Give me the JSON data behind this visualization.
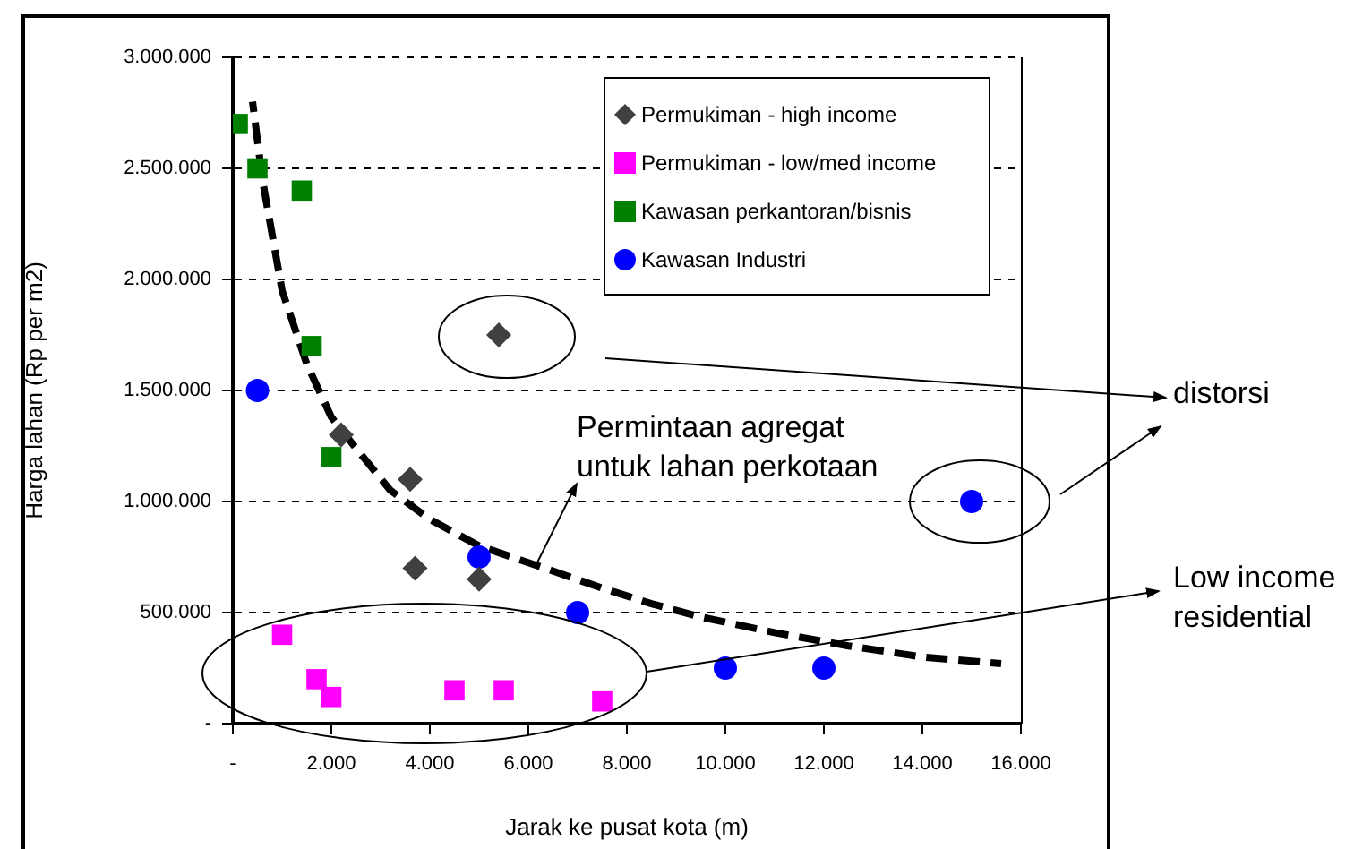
{
  "chart_data": {
    "type": "scatter",
    "xlabel": "Jarak ke pusat kota (m)",
    "ylabel": "Harga lahan (Rp per m2)",
    "xlim": [
      0,
      16000
    ],
    "ylim": [
      0,
      3000000
    ],
    "xticks": [
      {
        "value": 0,
        "label": "-"
      },
      {
        "value": 2000,
        "label": "2.000"
      },
      {
        "value": 4000,
        "label": "4.000"
      },
      {
        "value": 6000,
        "label": "6.000"
      },
      {
        "value": 8000,
        "label": "8.000"
      },
      {
        "value": 10000,
        "label": "10.000"
      },
      {
        "value": 12000,
        "label": "12.000"
      },
      {
        "value": 14000,
        "label": "14.000"
      },
      {
        "value": 16000,
        "label": "16.000"
      }
    ],
    "yticks": [
      {
        "value": 0,
        "label": "-"
      },
      {
        "value": 500000,
        "label": "500.000"
      },
      {
        "value": 1000000,
        "label": "1.000.000"
      },
      {
        "value": 1500000,
        "label": "1.500.000"
      },
      {
        "value": 2000000,
        "label": "2.000.000"
      },
      {
        "value": 2500000,
        "label": "2.500.000"
      },
      {
        "value": 3000000,
        "label": "3.000.000"
      }
    ],
    "grid": "y",
    "legend": "top right",
    "series": [
      {
        "name": "Permukiman - high income",
        "color": "#404040",
        "marker": "diamond",
        "x": [
          5400,
          2200,
          3600,
          3700,
          5000
        ],
        "values": [
          1750000,
          1300000,
          1100000,
          700000,
          650000
        ]
      },
      {
        "name": "Permukiman - low/med income",
        "color": "#ff00ff",
        "marker": "square",
        "x": [
          1000,
          1700,
          2000,
          4500,
          5500,
          7500
        ],
        "values": [
          400000,
          200000,
          120000,
          150000,
          150000,
          100000
        ]
      },
      {
        "name": "Kawasan perkantoran/bisnis",
        "color": "#008000",
        "marker": "square",
        "x": [
          100,
          500,
          1400,
          1600,
          2000
        ],
        "values": [
          2700000,
          2500000,
          2400000,
          1700000,
          1200000
        ]
      },
      {
        "name": "Kawasan Industri",
        "color": "#0000ff",
        "marker": "circle",
        "x": [
          500,
          5000,
          7000,
          10000,
          12000,
          15000
        ],
        "values": [
          1500000,
          750000,
          500000,
          250000,
          250000,
          1000000
        ]
      },
      {
        "type": "line",
        "color": "#000000",
        "marker": "none",
        "line_style": "dashed",
        "x": [
          400,
          600,
          1000,
          1500,
          2000,
          2500,
          3200,
          4000,
          5000,
          6200,
          7500,
          8500,
          9500,
          11000,
          12500,
          14000,
          15600
        ],
        "values": [
          2800000,
          2450000,
          1950000,
          1620000,
          1380000,
          1240000,
          1050000,
          920000,
          800000,
          710000,
          610000,
          540000,
          480000,
          410000,
          350000,
          300000,
          270000
        ]
      }
    ],
    "annotations": [
      "Permintaan agregat untuk lahan perkotaan",
      "distorsi",
      "Low income residential"
    ]
  }
}
